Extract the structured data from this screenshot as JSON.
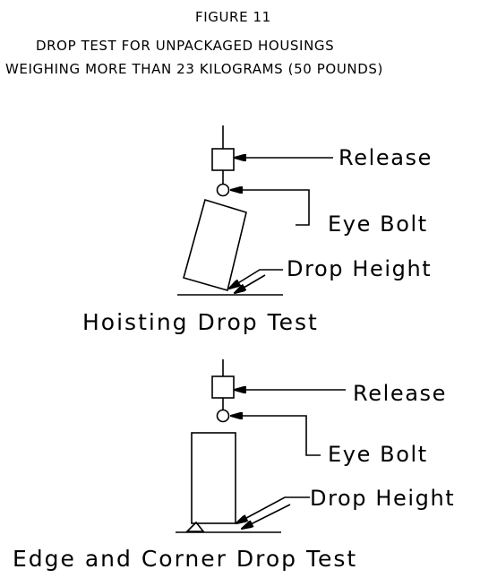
{
  "figure": {
    "number_label": "FIGURE 11",
    "title_line1": "DROP TEST FOR UNPACKAGED HOUSINGS",
    "title_line2": "WEIGHING MORE THAN 23 KILOGRAMS (50 POUNDS)"
  },
  "hoisting": {
    "release_label": "Release",
    "eyebolt_label": "Eye Bolt",
    "drop_height_label": "Drop Height",
    "caption": "Hoisting Drop Test"
  },
  "edge_corner": {
    "release_label": "Release",
    "eyebolt_label": "Eye Bolt",
    "drop_height_label": "Drop Height",
    "caption": "Edge and Corner Drop Test"
  }
}
